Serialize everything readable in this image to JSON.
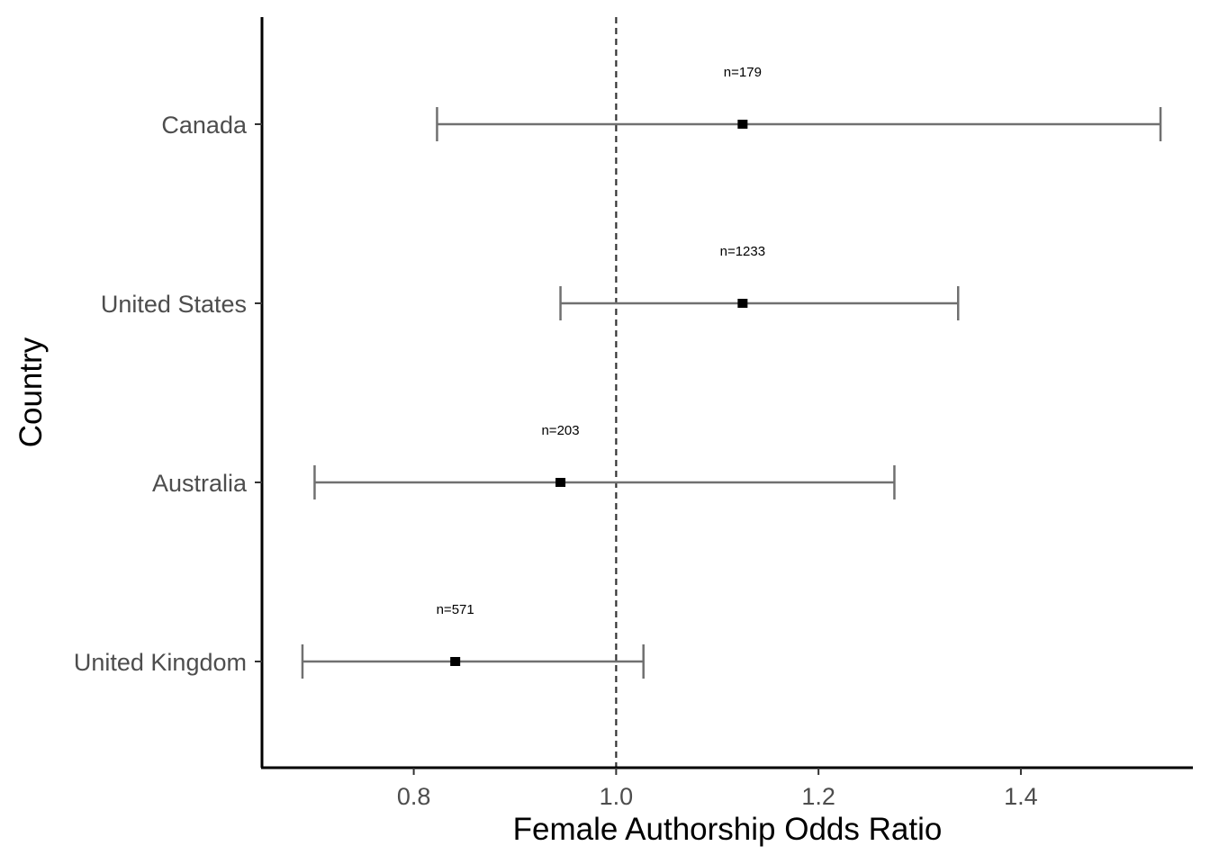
{
  "chart_data": {
    "type": "scatter",
    "subtype": "forest-plot",
    "title": "",
    "xlabel": "Female Authorship Odds Ratio",
    "ylabel": "Country",
    "xlim": [
      0.65,
      1.57
    ],
    "x_ticks": [
      0.8,
      1.0,
      1.2,
      1.4
    ],
    "x_tick_labels": [
      "0.8",
      "1.0",
      "1.2",
      "1.4"
    ],
    "reference_line": 1.0,
    "reference_line_style": "dashed",
    "grid": false,
    "legend": "none",
    "colors": {
      "point": "#000000",
      "errorbar": "#707070",
      "reference": "#333333",
      "axis": "#000000"
    },
    "rows": [
      {
        "country": "Canada",
        "estimate": 1.125,
        "lower": 0.823,
        "upper": 1.538,
        "n_label": "n=179"
      },
      {
        "country": "United States",
        "estimate": 1.125,
        "lower": 0.945,
        "upper": 1.338,
        "n_label": "n=1233"
      },
      {
        "country": "Australia",
        "estimate": 0.945,
        "lower": 0.702,
        "upper": 1.275,
        "n_label": "n=203"
      },
      {
        "country": "United Kingdom",
        "estimate": 0.841,
        "lower": 0.69,
        "upper": 1.027,
        "n_label": "n=571"
      }
    ]
  }
}
